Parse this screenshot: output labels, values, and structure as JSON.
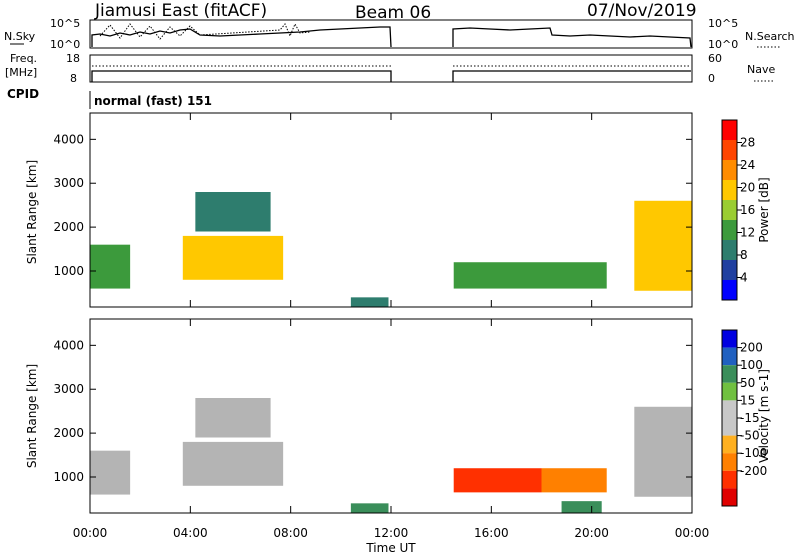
{
  "header": {
    "station": "Jiamusi East (fitACF)",
    "beam": "Beam 06",
    "date": "07/Nov/2019"
  },
  "status_panels": {
    "nsky_label": "N.Sky",
    "nsky_ticks": [
      "10^5",
      "10^0"
    ],
    "nsearch_label": "N.Search",
    "nsearch_ticks": [
      "10^5",
      "10^0"
    ],
    "freq_label_1": "Freq.",
    "freq_label_2": "[MHz]",
    "freq_ticks": [
      "18",
      "8"
    ],
    "nave_label": "Nave",
    "nave_ticks": [
      "60",
      "0"
    ],
    "cpid_label": "CPID",
    "cpid_value": "normal (fast) 151"
  },
  "colors": {
    "power_scale": [
      "#0000ff",
      "#2040a0",
      "#2e7d6e",
      "#3c9a3c",
      "#9acd32",
      "#ffc800",
      "#ff8c00",
      "#ff4500",
      "#ff0000"
    ],
    "velocity_scale": [
      "#0000e0",
      "#2060c0",
      "#3a8e5a",
      "#70c040",
      "#c8c8c8",
      "#c8c8c8",
      "#ffb020",
      "#ff8000",
      "#ff3000",
      "#e00000"
    ],
    "ground_scatter": "#b4b4b4"
  },
  "chart_data": [
    {
      "type": "heatmap",
      "name": "power",
      "ylabel": "Slant Range [km]",
      "xlim": [
        "00:00",
        "24:00"
      ],
      "ylim": [
        180,
        4600
      ],
      "yticks": [
        1000,
        2000,
        3000,
        4000
      ],
      "colorbar": {
        "label": "Power [dB]",
        "range": [
          0,
          32
        ],
        "ticks": [
          4,
          8,
          12,
          16,
          20,
          24,
          28
        ]
      },
      "blocks": [
        {
          "t0": 0.0,
          "t1": 1.6,
          "r0": 600,
          "r1": 1600,
          "value": 14
        },
        {
          "t0": 3.7,
          "t1": 7.7,
          "r0": 800,
          "r1": 1800,
          "value": 18
        },
        {
          "t0": 4.2,
          "t1": 7.2,
          "r0": 1900,
          "r1": 2800,
          "value": 8
        },
        {
          "t0": 10.4,
          "t1": 11.9,
          "r0": 180,
          "r1": 400,
          "value": 9
        },
        {
          "t0": 14.5,
          "t1": 20.6,
          "r0": 600,
          "r1": 1200,
          "value": 12
        },
        {
          "t0": 21.7,
          "t1": 24.0,
          "r0": 550,
          "r1": 2600,
          "value": 19
        }
      ]
    },
    {
      "type": "heatmap",
      "name": "velocity",
      "ylabel": "Slant Range [km]",
      "xlabel": "Time UT",
      "xlim": [
        "00:00",
        "24:00"
      ],
      "xticks": [
        "00:00",
        "04:00",
        "08:00",
        "12:00",
        "16:00",
        "20:00",
        "00:00"
      ],
      "ylim": [
        180,
        4600
      ],
      "yticks": [
        1000,
        2000,
        3000,
        4000
      ],
      "colorbar": {
        "label": "Velocity [m s-1]",
        "ticks": [
          200,
          100,
          50,
          15,
          -15,
          -50,
          -100,
          -200
        ]
      },
      "blocks": [
        {
          "t0": 0.0,
          "t1": 1.6,
          "r0": 600,
          "r1": 1600,
          "value": 0
        },
        {
          "t0": 3.7,
          "t1": 7.7,
          "r0": 800,
          "r1": 1800,
          "value": 0
        },
        {
          "t0": 4.2,
          "t1": 7.2,
          "r0": 1900,
          "r1": 2800,
          "value": 0
        },
        {
          "t0": 10.4,
          "t1": 11.9,
          "r0": 180,
          "r1": 400,
          "value": 60
        },
        {
          "t0": 14.5,
          "t1": 18.0,
          "r0": 650,
          "r1": 1200,
          "value": -130
        },
        {
          "t0": 18.0,
          "t1": 20.6,
          "r0": 650,
          "r1": 1200,
          "value": -60
        },
        {
          "t0": 18.8,
          "t1": 20.4,
          "r0": 180,
          "r1": 450,
          "value": 60
        },
        {
          "t0": 21.7,
          "t1": 24.0,
          "r0": 550,
          "r1": 2600,
          "value": 0
        }
      ]
    }
  ]
}
